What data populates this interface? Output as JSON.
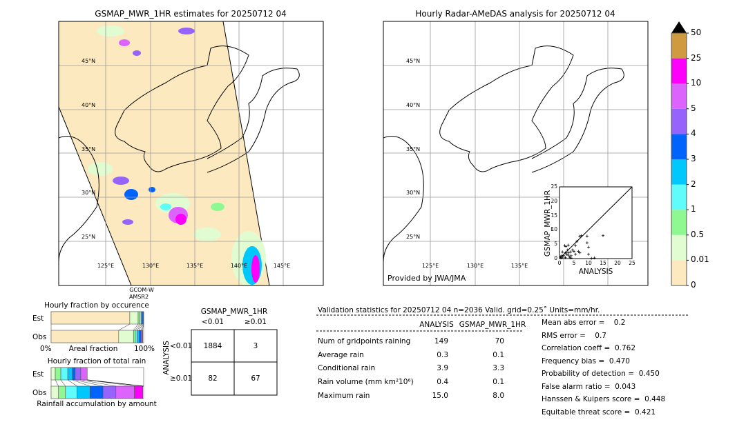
{
  "left_map": {
    "title": "GSMAP_MWR_1HR estimates for 20250712 04",
    "lat_labels": [
      "45°N",
      "40°N",
      "35°N",
      "30°N",
      "25°N"
    ],
    "lon_labels": [
      "125°E",
      "130°E",
      "135°E",
      "140°E",
      "145°E"
    ],
    "satellite_label": [
      "GCOM-W",
      "AMSR2"
    ]
  },
  "right_map": {
    "title": "Hourly Radar-AMeDAS analysis for 20250712 04",
    "lat_labels": [
      "45°N",
      "40°N",
      "35°N",
      "30°N",
      "25°N"
    ],
    "lon_labels": [
      "125°E",
      "130°E",
      "135°E"
    ],
    "credit": "Provided by JWA/JMA"
  },
  "colorbar": {
    "labels": [
      "0",
      "0.01",
      "0.5",
      "1",
      "2",
      "3",
      "4",
      "5",
      "10",
      "25",
      "50"
    ],
    "colors": [
      "#fde9c0",
      "#e0fcd0",
      "#90f890",
      "#60fcfc",
      "#00c8fc",
      "#0064fc",
      "#9664fc",
      "#dc64fc",
      "#fc00fc",
      "#cf9a40"
    ],
    "extend_color": "#000000"
  },
  "chart_data": [
    {
      "type": "scatter",
      "xlabel": "ANALYSIS",
      "ylabel": "GSMAP_MWR_1HR",
      "xlim": [
        0,
        25
      ],
      "ylim": [
        0,
        25
      ],
      "ticks": [
        "0",
        "5",
        "10",
        "15",
        "20",
        "25"
      ],
      "points": [
        [
          0.5,
          0.2
        ],
        [
          1,
          0.5
        ],
        [
          1.5,
          1
        ],
        [
          2,
          0.3
        ],
        [
          2.5,
          1.5
        ],
        [
          3,
          2
        ],
        [
          3.5,
          0.5
        ],
        [
          4,
          1
        ],
        [
          1.8,
          4.5
        ],
        [
          2.2,
          4.2
        ],
        [
          3,
          4.7
        ],
        [
          5.5,
          4.5
        ],
        [
          6,
          6
        ],
        [
          7,
          7.8
        ],
        [
          7.5,
          8
        ],
        [
          9.5,
          7.8
        ],
        [
          9.5,
          5.5
        ],
        [
          10,
          4
        ],
        [
          10,
          1.5
        ],
        [
          15,
          8
        ],
        [
          12,
          0.2
        ],
        [
          11,
          0.1
        ],
        [
          4.5,
          3
        ],
        [
          5,
          2.5
        ],
        [
          5.5,
          1.5
        ],
        [
          6.5,
          2.5
        ],
        [
          7,
          2
        ],
        [
          4,
          0.2
        ],
        [
          3,
          1.2
        ],
        [
          2,
          2
        ],
        [
          1,
          2.3
        ],
        [
          0.8,
          1
        ],
        [
          0.3,
          0.6
        ],
        [
          2.8,
          3
        ],
        [
          3.8,
          2.3
        ]
      ]
    },
    {
      "type": "bar",
      "title": "Hourly fraction by occurence",
      "categories": [
        "Est",
        "Obs"
      ],
      "xlabel": "Areal fraction",
      "x_tick_labels": [
        "0%",
        "100%"
      ],
      "series": {
        "Est": [
          0.85,
          0.09,
          0.02,
          0.015,
          0.01,
          0.01,
          0.005
        ],
        "Obs": [
          0.73,
          0.16,
          0.02,
          0.02,
          0.02,
          0.02,
          0.015,
          0.005
        ]
      }
    },
    {
      "type": "bar",
      "title": "Hourly fraction of total rain",
      "categories": [
        "Est",
        "Obs"
      ],
      "xlabel": "Rainfall accumulation by amount",
      "series": {
        "Est": [
          0.045,
          0.06,
          0.075,
          0.05,
          0.03,
          0.06,
          0.07
        ],
        "Obs": [
          0.08,
          0.075,
          0.125,
          0.14,
          0.14,
          0.14,
          0.2,
          0.09
        ]
      }
    }
  ],
  "contingency": {
    "header": "GSMAP_MWR_1HR",
    "col_labels": [
      "<0.01",
      "≥0.01"
    ],
    "row_axis": "ANALYSIS",
    "row_labels": [
      "<0.01",
      "≥0.01"
    ],
    "cells": [
      [
        "1884",
        "3"
      ],
      [
        "82",
        "67"
      ]
    ]
  },
  "stats": {
    "header": "Validation statistics for 20250712 04  n=2036 Valid. grid=0.25˚ Units=mm/hr.",
    "col_headers": [
      "ANALYSIS",
      "GSMAP_MWR_1HR"
    ],
    "rows": [
      {
        "label": "Num of gridpoints raining",
        "a": "149",
        "b": "70"
      },
      {
        "label": "Average rain",
        "a": "0.3",
        "b": "0.1"
      },
      {
        "label": "Conditional rain",
        "a": "3.9",
        "b": "3.3"
      },
      {
        "label": "Rain volume (mm km²10⁶)",
        "a": "0.4",
        "b": "0.1"
      },
      {
        "label": "Maximum rain",
        "a": "15.0",
        "b": "8.0"
      }
    ],
    "scores": [
      "Mean abs error =    0.2",
      "RMS error =    0.7",
      "Correlation coeff =  0.762",
      "Frequency bias =  0.470",
      "Probability of detection =  0.450",
      "False alarm ratio =  0.043",
      "Hanssen & Kuipers score =  0.448",
      "Equitable threat score =  0.421"
    ]
  }
}
